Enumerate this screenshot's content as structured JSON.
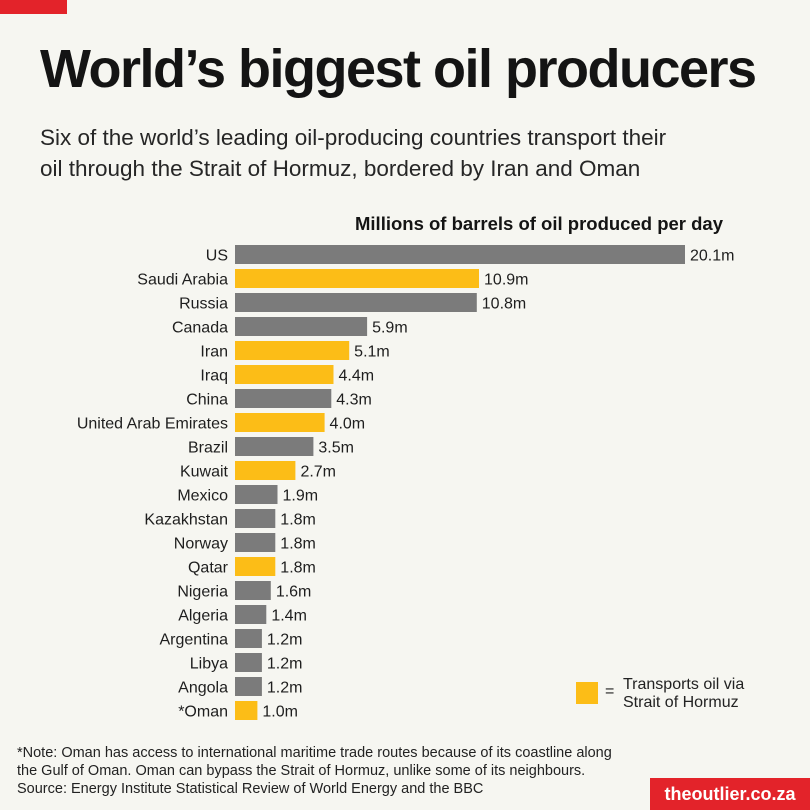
{
  "header": {
    "title": "World’s biggest oil producers",
    "subtitle_line1": "Six of the world’s leading oil-producing countries transport their",
    "subtitle_line2": "oil through the Strait of Hormuz, bordered by Iran and Oman"
  },
  "legend": {
    "symbol": "=",
    "line1": "Transports oil via",
    "line2": "Strait of Hormuz"
  },
  "footer": {
    "note_line1": "*Note: Oman has access to international maritime trade routes because of its coastline along",
    "note_line2": "the Gulf of Oman. Oman can bypass the Strait of Hormuz, unlike some of its neighbours.",
    "source": "Source: Energy Institute Statistical Review of World Energy and the BBC",
    "brand": "theoutlier.co.za"
  },
  "colors": {
    "accent": "#e3232a",
    "hormuz": "#fcbd17",
    "other": "#7b7b7b",
    "background": "#f6f6f1"
  },
  "chart_data": {
    "type": "bar",
    "orientation": "horizontal",
    "title": "Millions of barrels of oil produced per day",
    "categories": [
      "US",
      "Saudi Arabia",
      "Russia",
      "Canada",
      "Iran",
      "Iraq",
      "China",
      "United Arab Emirates",
      "Brazil",
      "Kuwait",
      "Mexico",
      "Kazakhstan",
      "Norway",
      "Qatar",
      "Nigeria",
      "Algeria",
      "Argentina",
      "Libya",
      "Angola",
      "*Oman"
    ],
    "values": [
      20.1,
      10.9,
      10.8,
      5.9,
      5.1,
      4.4,
      4.3,
      4.0,
      3.5,
      2.7,
      1.9,
      1.8,
      1.8,
      1.8,
      1.6,
      1.4,
      1.2,
      1.2,
      1.2,
      1.0
    ],
    "value_labels": [
      "20.1m",
      "10.9m",
      "10.8m",
      "5.9m",
      "5.1m",
      "4.4m",
      "4.3m",
      "4.0m",
      "3.5m",
      "2.7m",
      "1.9m",
      "1.8m",
      "1.8m",
      "1.8m",
      "1.6m",
      "1.4m",
      "1.2m",
      "1.2m",
      "1.2m",
      "1.0m"
    ],
    "hormuz": [
      false,
      true,
      false,
      false,
      true,
      true,
      false,
      true,
      false,
      true,
      false,
      false,
      false,
      true,
      false,
      false,
      false,
      false,
      false,
      true
    ],
    "xlim": [
      0,
      20.1
    ],
    "grid": false,
    "legend_position": "bottom-right"
  }
}
